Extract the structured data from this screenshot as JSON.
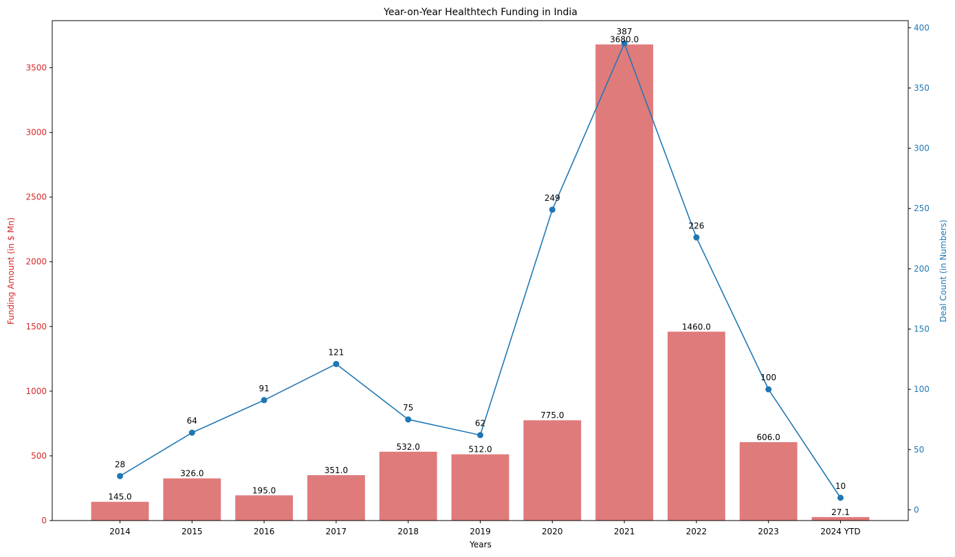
{
  "chart_data": {
    "type": "bar",
    "title": "Year-on-Year Healthtech Funding in India",
    "xlabel": "Years",
    "ylabel": "Funding Amount (in $ Mn)",
    "y2label": "Deal Count (in Numbers)",
    "categories": [
      "2014",
      "2015",
      "2016",
      "2017",
      "2018",
      "2019",
      "2020",
      "2021",
      "2022",
      "2023",
      "2024 YTD"
    ],
    "series": [
      {
        "name": "Funding Amount (in $ Mn)",
        "type": "bar",
        "axis": "left",
        "values": [
          145.0,
          326.0,
          195.0,
          351.0,
          532.0,
          512.0,
          775.0,
          3680.0,
          1460.0,
          606.0,
          27.1
        ],
        "labels": [
          "145.0",
          "326.0",
          "195.0",
          "351.0",
          "532.0",
          "512.0",
          "775.0",
          "3680.0",
          "1460.0",
          "606.0",
          "27.1"
        ],
        "color": "#e07b7b"
      },
      {
        "name": "Deal Count (in Numbers)",
        "type": "line",
        "axis": "right",
        "values": [
          28,
          64,
          91,
          121,
          75,
          62,
          249,
          387,
          226,
          100,
          10
        ],
        "labels": [
          "28",
          "64",
          "91",
          "121",
          "75",
          "62",
          "249",
          "387",
          "226",
          "100",
          "10"
        ],
        "color": "#1f77b4"
      }
    ],
    "ylim": [
      0,
      3864
    ],
    "y2lim": [
      -8.9,
      405.9
    ],
    "yticks": [
      0,
      500,
      1000,
      1500,
      2000,
      2500,
      3000,
      3500
    ],
    "ytick_labels": [
      "0",
      "500",
      "1000",
      "1500",
      "2000",
      "2500",
      "3000",
      "3500"
    ],
    "y2ticks": [
      0,
      50,
      100,
      150,
      200,
      250,
      300,
      350,
      400
    ],
    "y2tick_labels": [
      "0",
      "50",
      "100",
      "150",
      "200",
      "250",
      "300",
      "350",
      "400"
    ],
    "left_axis_color": "#d62728",
    "right_axis_color": "#1f77b4",
    "grid": false,
    "legend": "none"
  }
}
